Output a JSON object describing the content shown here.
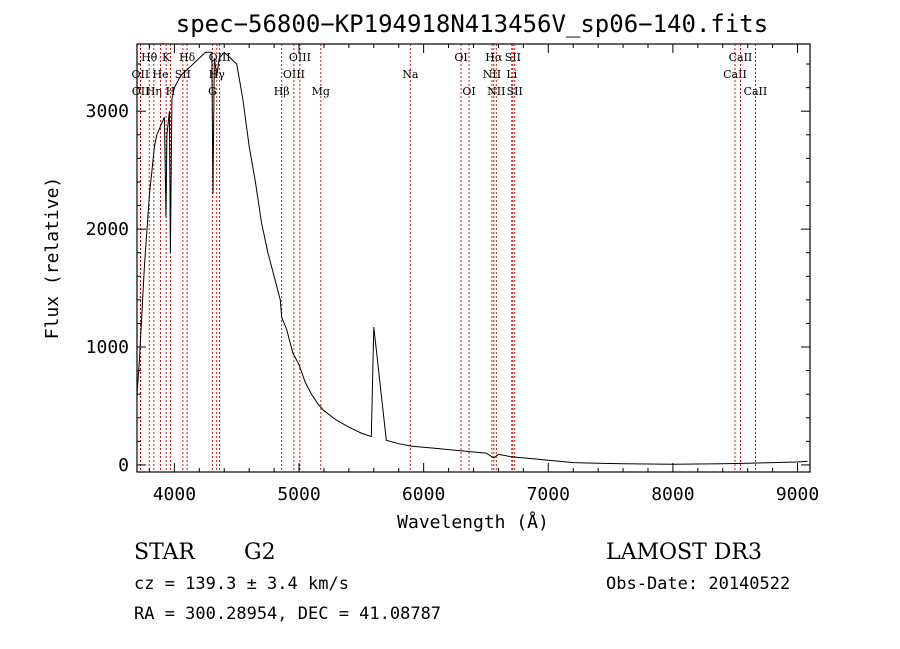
{
  "chart_data": {
    "type": "line",
    "title": "spec−56800−KP194918N413456V_sp06−140.fits",
    "xlabel": "Wavelength (Å)",
    "ylabel": "Flux (relative)",
    "xlim": [
      3700,
      9100
    ],
    "ylim": [
      -60,
      3570
    ],
    "x_ticks": [
      4000,
      5000,
      6000,
      7000,
      8000,
      9000
    ],
    "y_ticks": [
      0,
      1000,
      2000,
      3000
    ],
    "series": [
      {
        "name": "flux",
        "x": [
          3700,
          3720,
          3740,
          3760,
          3780,
          3800,
          3820,
          3840,
          3860,
          3880,
          3900,
          3920,
          3933,
          3940,
          3960,
          3968,
          3980,
          4000,
          4050,
          4100,
          4150,
          4200,
          4250,
          4300,
          4310,
          4320,
          4340,
          4360,
          4400,
          4450,
          4500,
          4550,
          4600,
          4650,
          4700,
          4750,
          4800,
          4850,
          4861,
          4900,
          4950,
          5000,
          5050,
          5100,
          5150,
          5200,
          5300,
          5400,
          5500,
          5580,
          5600,
          5700,
          5800,
          5900,
          6000,
          6100,
          6200,
          6300,
          6400,
          6500,
          6563,
          6600,
          6700,
          6800,
          6900,
          7000,
          7100,
          7200,
          7400,
          7600,
          7800,
          8000,
          8200,
          8400,
          8600,
          8800,
          9000,
          9080
        ],
        "y": [
          600,
          900,
          1300,
          1700,
          2000,
          2300,
          2500,
          2700,
          2800,
          2850,
          2900,
          2950,
          2100,
          2800,
          3000,
          1800,
          3100,
          3200,
          3300,
          3350,
          3400,
          3450,
          3500,
          3500,
          2300,
          3450,
          3300,
          3450,
          3500,
          3450,
          3400,
          3100,
          2700,
          2400,
          2050,
          1800,
          1600,
          1400,
          1250,
          1150,
          950,
          850,
          700,
          600,
          520,
          460,
          380,
          320,
          270,
          240,
          1170,
          210,
          180,
          160,
          150,
          140,
          130,
          120,
          110,
          100,
          60,
          90,
          70,
          60,
          50,
          40,
          30,
          20,
          15,
          10,
          8,
          5,
          8,
          10,
          15,
          20,
          25,
          30
        ]
      }
    ],
    "line_markers": [
      {
        "label": "Hθ",
        "wavelength": 3798,
        "row": 1
      },
      {
        "label": "OII",
        "wavelength": 3727,
        "row": 2
      },
      {
        "label": "OII",
        "wavelength": 3729,
        "row": 3
      },
      {
        "label": "Hη",
        "wavelength": 3835,
        "row": 3
      },
      {
        "label": "K",
        "wavelength": 3934,
        "row": 1
      },
      {
        "label": "He",
        "wavelength": 3889,
        "row": 2
      },
      {
        "label": "H",
        "wavelength": 3968,
        "row": 3
      },
      {
        "label": "SII",
        "wavelength": 4068,
        "row": 2
      },
      {
        "label": "Hδ",
        "wavelength": 4102,
        "row": 1
      },
      {
        "label": "G",
        "wavelength": 4305,
        "row": 3
      },
      {
        "label": "Hγ",
        "wavelength": 4340,
        "row": 2
      },
      {
        "label": "OIII",
        "wavelength": 4363,
        "row": 1
      },
      {
        "label": "Hβ",
        "wavelength": 4861,
        "row": 3
      },
      {
        "label": "OIII",
        "wavelength": 4959,
        "row": 2
      },
      {
        "label": "OIII",
        "wavelength": 5007,
        "row": 1
      },
      {
        "label": "Mg",
        "wavelength": 5175,
        "row": 3
      },
      {
        "label": "Na",
        "wavelength": 5893,
        "row": 2
      },
      {
        "label": "OI",
        "wavelength": 6300,
        "row": 1
      },
      {
        "label": "OI",
        "wavelength": 6364,
        "row": 3
      },
      {
        "label": "NII",
        "wavelength": 6548,
        "row": 2
      },
      {
        "label": "Hα",
        "wavelength": 6563,
        "row": 1
      },
      {
        "label": "NII",
        "wavelength": 6583,
        "row": 3
      },
      {
        "label": "Li",
        "wavelength": 6707,
        "row": 2
      },
      {
        "label": "SII",
        "wavelength": 6716,
        "row": 1
      },
      {
        "label": "SII",
        "wavelength": 6731,
        "row": 3
      },
      {
        "label": "CaII",
        "wavelength": 8498,
        "row": 2
      },
      {
        "label": "CaII",
        "wavelength": 8542,
        "row": 1
      },
      {
        "label": "CaII",
        "wavelength": 8662,
        "row": 3
      }
    ],
    "marker_color": "#c00000",
    "line_color": "#000000"
  },
  "info": {
    "class": "STAR",
    "subclass": "G2",
    "survey": "LAMOST DR3",
    "cz": "cz = 139.3 ± 3.4 km/s",
    "obs_date": "Obs-Date: 20140522",
    "coords": "RA = 300.28954, DEC =  41.08787"
  }
}
